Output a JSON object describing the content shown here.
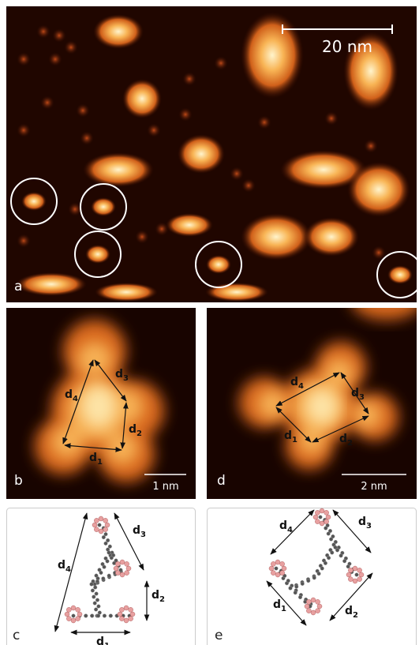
{
  "panels": [
    {
      "label": "a",
      "scale_bar": "20 nm"
    },
    {
      "label": "b",
      "scale_bar": "1 nm",
      "distances": [
        {
          "symbol": "d",
          "index": "1"
        },
        {
          "symbol": "d",
          "index": "2"
        },
        {
          "symbol": "d",
          "index": "3"
        },
        {
          "symbol": "d",
          "index": "4"
        }
      ]
    },
    {
      "label": "d",
      "scale_bar": "2 nm",
      "distances": [
        {
          "symbol": "d",
          "index": "1"
        },
        {
          "symbol": "d",
          "index": "2"
        },
        {
          "symbol": "d",
          "index": "3"
        },
        {
          "symbol": "d",
          "index": "4"
        }
      ]
    },
    {
      "label": "c",
      "distances": [
        {
          "symbol": "d",
          "index": "1"
        },
        {
          "symbol": "d",
          "index": "2"
        },
        {
          "symbol": "d",
          "index": "3"
        },
        {
          "symbol": "d",
          "index": "4"
        }
      ]
    },
    {
      "label": "e",
      "distances": [
        {
          "symbol": "d",
          "index": "1"
        },
        {
          "symbol": "d",
          "index": "2"
        },
        {
          "symbol": "d",
          "index": "3"
        },
        {
          "symbol": "d",
          "index": "4"
        }
      ]
    }
  ]
}
